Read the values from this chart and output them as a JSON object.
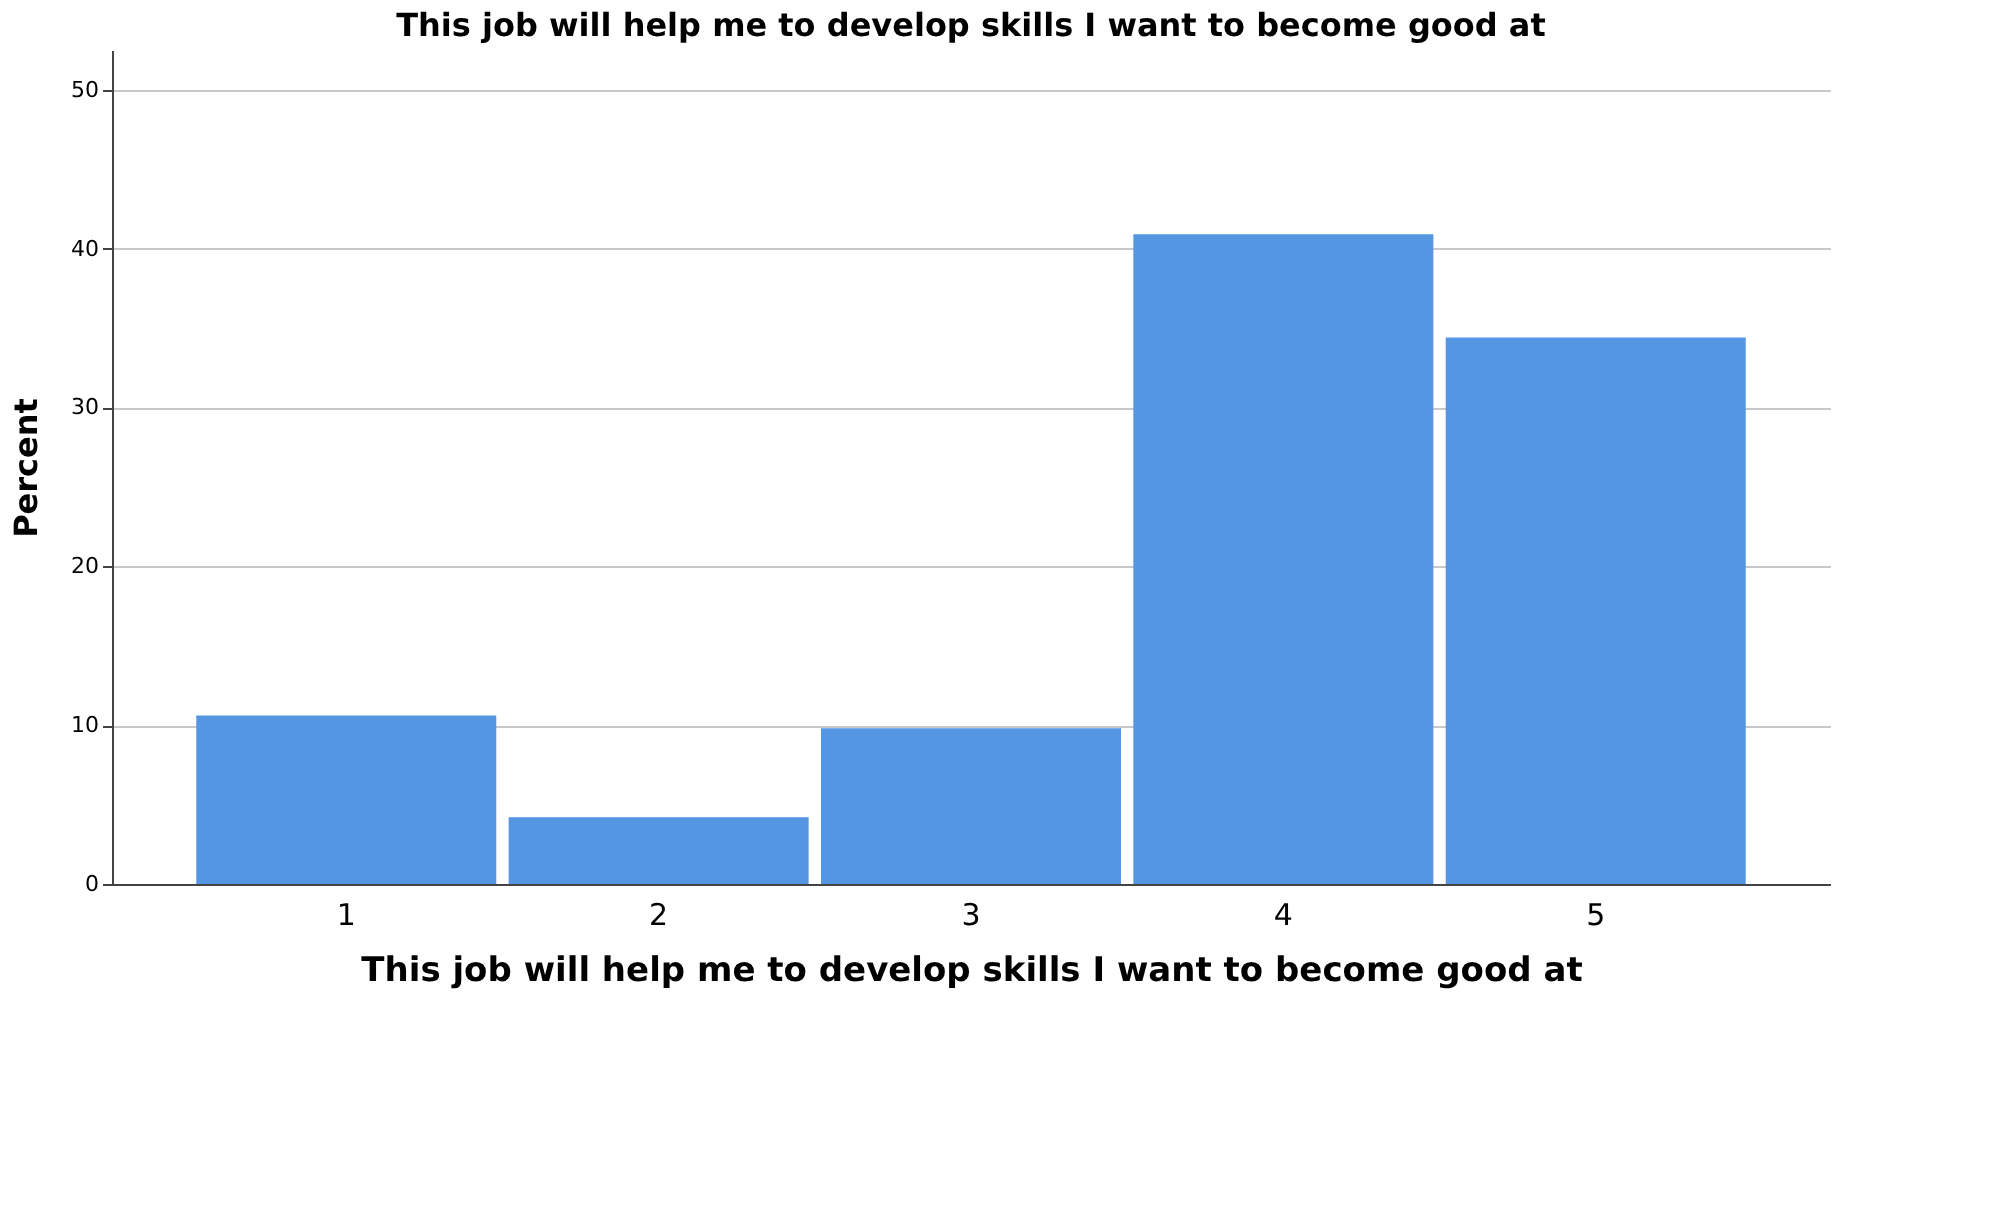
{
  "chart_data": {
    "type": "bar",
    "title": "This job will help me to develop skills I want to become good at",
    "xlabel": "This job will help me to develop skills I want to become good at",
    "ylabel": "Percent",
    "categories": [
      "1",
      "2",
      "3",
      "4",
      "5"
    ],
    "values": [
      10.6,
      4.2,
      9.8,
      40.9,
      34.4
    ],
    "color": "#5596e3",
    "ylim": [
      0,
      52.5
    ],
    "yticks": [
      0,
      10,
      20,
      30,
      40,
      50
    ],
    "grid": "y"
  }
}
